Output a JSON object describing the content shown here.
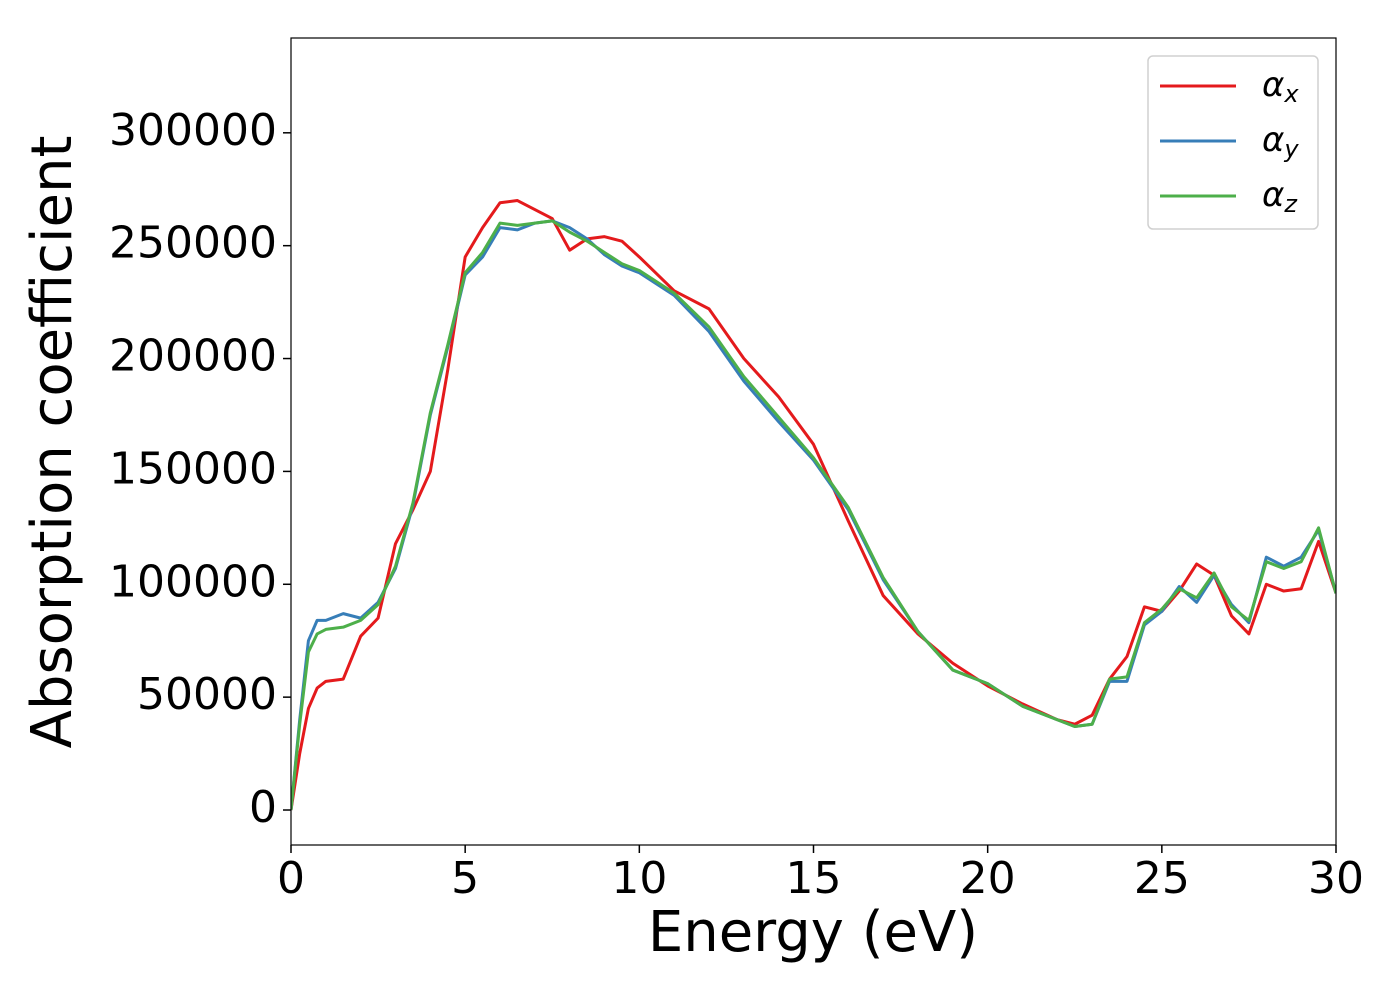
{
  "chart_data": {
    "type": "line",
    "xlabel": "Energy (eV)",
    "ylabel": "Absorption coefficient",
    "x": [
      0,
      0.25,
      0.5,
      0.75,
      1,
      1.5,
      2,
      2.5,
      3,
      3.5,
      4,
      4.5,
      5,
      5.5,
      6,
      6.5,
      7,
      7.5,
      8,
      8.5,
      9,
      9.5,
      10,
      11,
      12,
      13,
      14,
      15,
      16,
      17,
      18,
      19,
      20,
      21,
      22,
      22.5,
      23,
      23.5,
      24,
      24.5,
      25,
      25.5,
      26,
      26.5,
      27,
      27.5,
      28,
      28.5,
      29,
      29.5,
      30
    ],
    "series": [
      {
        "name": "αx",
        "color": "#e41a1c",
        "values": [
          0,
          25000,
          45000,
          54000,
          57000,
          58000,
          77000,
          85000,
          118000,
          133000,
          150000,
          195000,
          245000,
          258000,
          269000,
          270000,
          266000,
          262000,
          248000,
          253000,
          254000,
          252000,
          245000,
          230000,
          222000,
          200000,
          183000,
          162000,
          128000,
          95000,
          78000,
          65000,
          55000,
          47000,
          40000,
          38000,
          42000,
          58000,
          68000,
          90000,
          88000,
          97000,
          109000,
          104000,
          86000,
          78000,
          100000,
          97000,
          98000,
          119000,
          96000
        ]
      },
      {
        "name": "αy",
        "color": "#377eb8",
        "values": [
          0,
          40000,
          75000,
          84000,
          84000,
          87000,
          85000,
          92000,
          107000,
          135000,
          175000,
          205000,
          237000,
          245000,
          258000,
          257000,
          260000,
          261000,
          258000,
          253000,
          246000,
          241000,
          238000,
          228000,
          212000,
          190000,
          172000,
          155000,
          133000,
          102000,
          79000,
          62000,
          56000,
          46000,
          40000,
          37000,
          38000,
          57000,
          57000,
          82000,
          88000,
          99000,
          92000,
          104000,
          91000,
          83000,
          112000,
          108000,
          112000,
          124000,
          96000
        ]
      },
      {
        "name": "αz",
        "color": "#4daf4a",
        "values": [
          0,
          38000,
          70000,
          78000,
          80000,
          81000,
          84000,
          91000,
          108000,
          136000,
          176000,
          206000,
          238000,
          247000,
          260000,
          259000,
          260000,
          261000,
          256000,
          252000,
          247000,
          242000,
          239000,
          229000,
          214000,
          192000,
          174000,
          156000,
          134000,
          103000,
          79000,
          62000,
          56000,
          46000,
          40000,
          37000,
          38000,
          58000,
          59000,
          83000,
          89000,
          98000,
          94000,
          105000,
          90000,
          84000,
          110000,
          107000,
          110000,
          125000,
          96000
        ]
      }
    ],
    "xlim": [
      0,
      30
    ],
    "ylim": [
      -15500,
      342000
    ],
    "xticks": [
      0,
      5,
      10,
      15,
      20,
      25,
      30
    ],
    "yticks": [
      0,
      50000,
      100000,
      150000,
      200000,
      250000,
      300000
    ],
    "legend": "upper right"
  }
}
